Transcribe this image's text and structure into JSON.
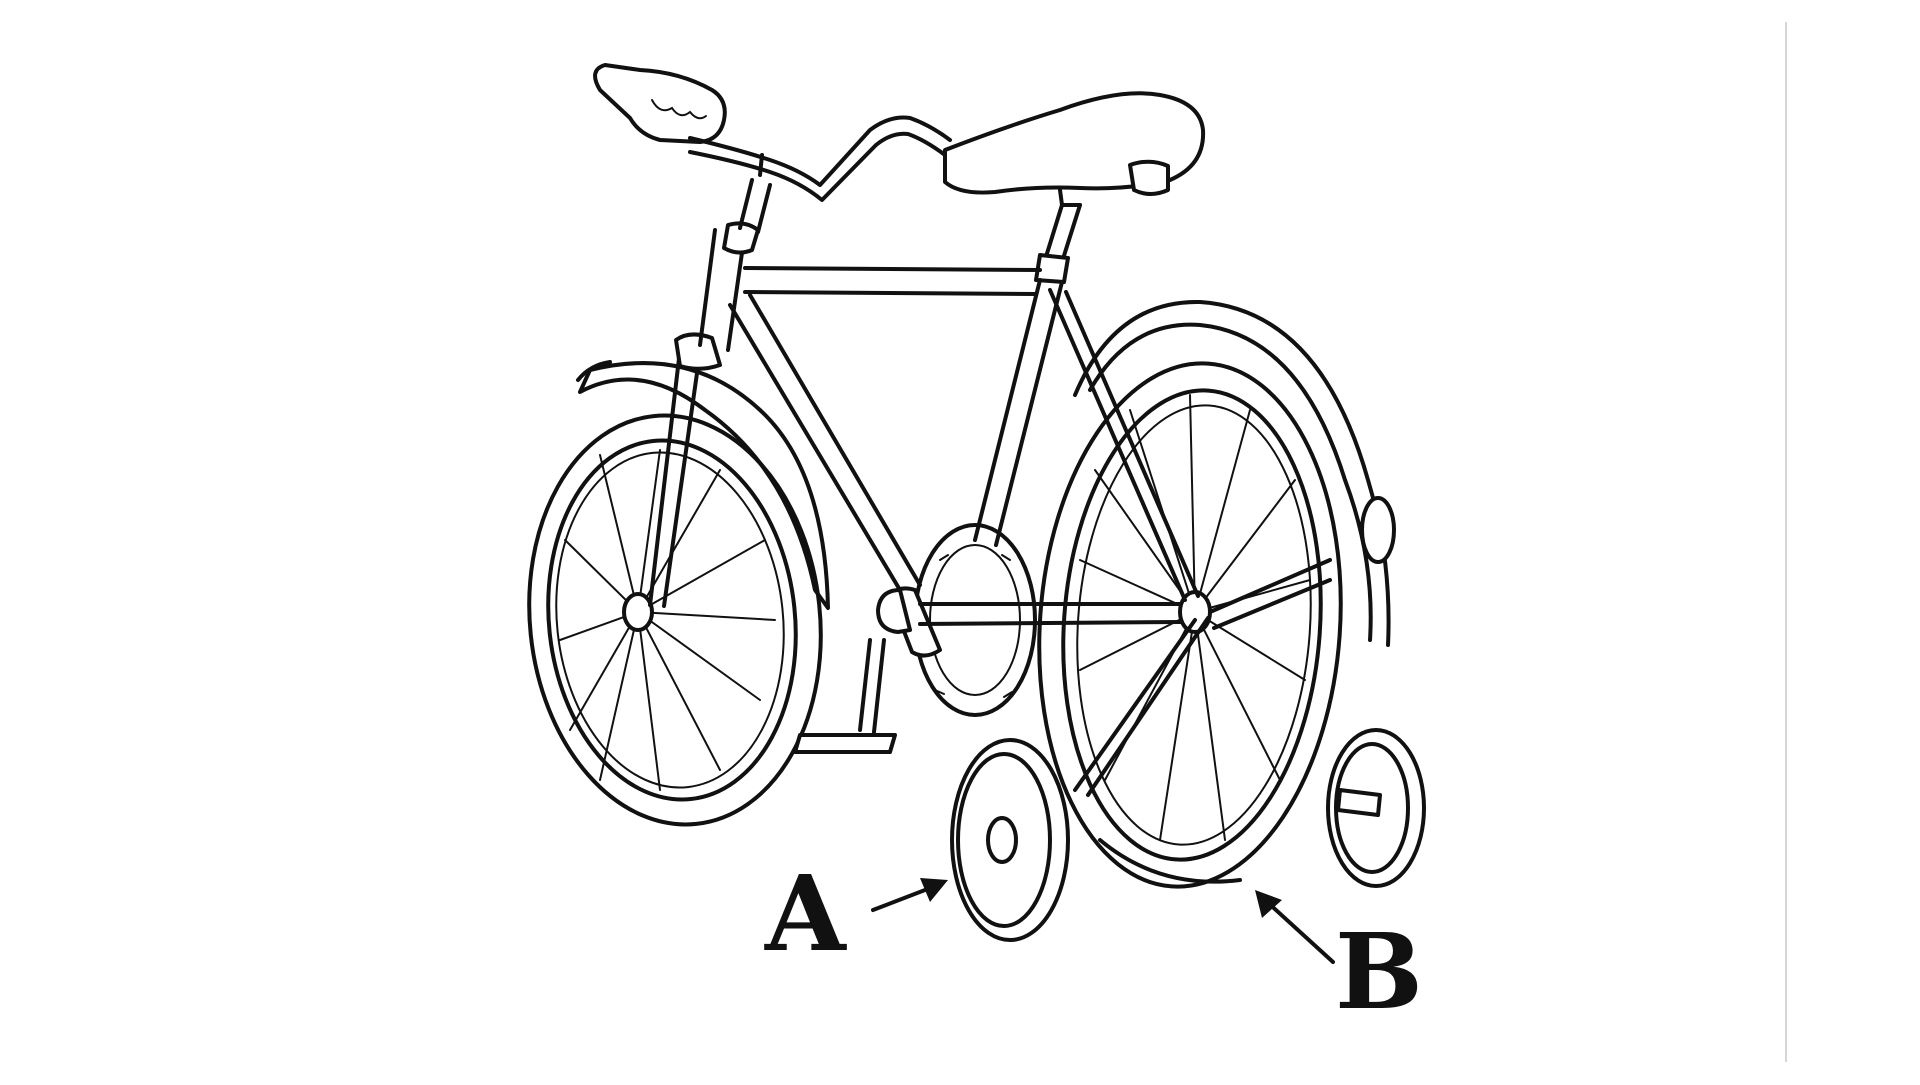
{
  "labels": {
    "a": "A",
    "b": "B"
  },
  "icons": {
    "bicycle": "bicycle-with-training-wheels-icon"
  }
}
